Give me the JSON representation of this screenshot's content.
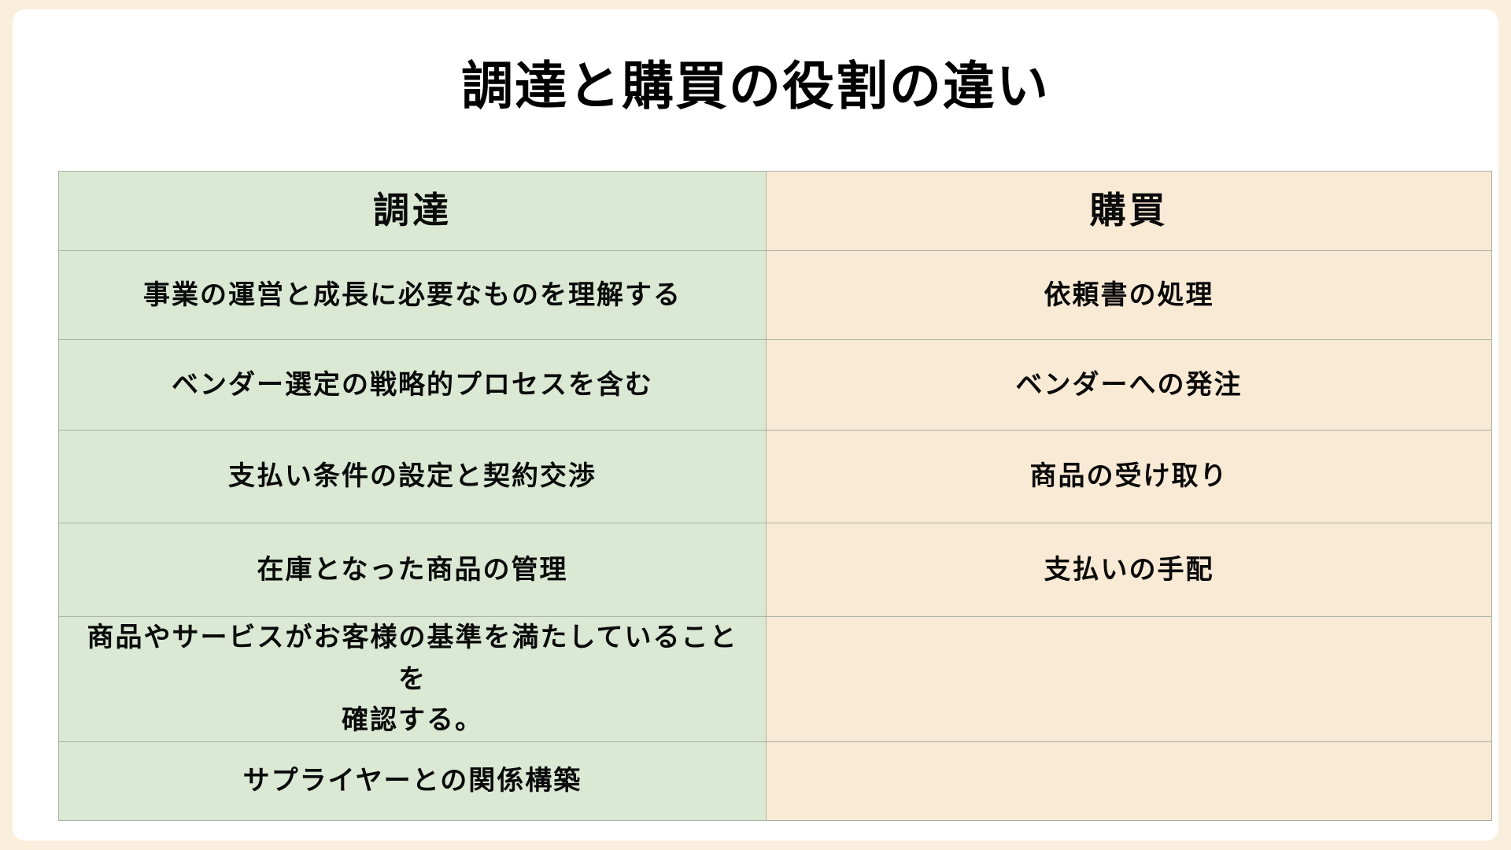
{
  "page": {
    "title": "調達と購買の役割の違い"
  },
  "table": {
    "columns": [
      {
        "header": "調達"
      },
      {
        "header": "購買"
      }
    ],
    "rows": [
      {
        "procurement": "事業の運営と成長に必要なものを理解する",
        "purchasing": "依頼書の処理"
      },
      {
        "procurement": "ベンダー選定の戦略的プロセスを含む",
        "purchasing": "ベンダーへの発注"
      },
      {
        "procurement": "支払い条件の設定と契約交渉",
        "purchasing": "商品の受け取り"
      },
      {
        "procurement": "在庫となった商品の管理",
        "purchasing": "支払いの手配"
      },
      {
        "procurement": "商品やサービスがお客様の基準を満たしていることを\n確認する。",
        "purchasing": ""
      },
      {
        "procurement": "サプライヤーとの関係構築",
        "purchasing": ""
      }
    ]
  },
  "colors": {
    "frame_bg": "#faefdc",
    "card_bg": "#ffffff",
    "procurement_bg": "#dae8d4",
    "purchasing_bg": "#f9ead5",
    "border": "#a9b2a6",
    "text": "#000000"
  }
}
